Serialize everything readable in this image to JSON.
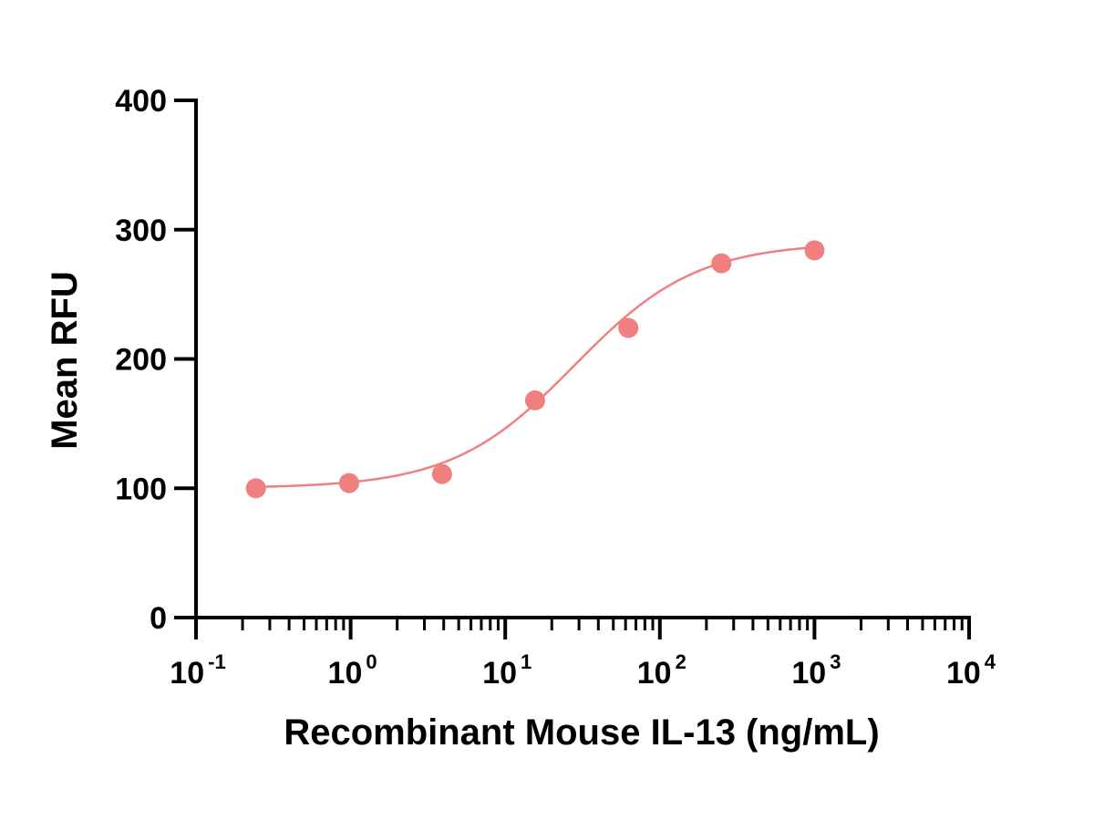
{
  "chart_data": {
    "type": "scatter",
    "title": "",
    "xlabel": "Recombinant Mouse IL-13 (ng/mL)",
    "ylabel": "Mean RFU",
    "x_scale": "log10",
    "xlim": [
      0.1,
      10000
    ],
    "ylim": [
      0,
      400
    ],
    "x_tick_labels": [
      {
        "base": "10",
        "exp": "-1",
        "value": 0.1
      },
      {
        "base": "10",
        "exp": "0",
        "value": 1
      },
      {
        "base": "10",
        "exp": "1",
        "value": 10
      },
      {
        "base": "10",
        "exp": "2",
        "value": 100
      },
      {
        "base": "10",
        "exp": "3",
        "value": 1000
      },
      {
        "base": "10",
        "exp": "4",
        "value": 10000
      }
    ],
    "y_ticks": [
      0,
      100,
      200,
      300,
      400
    ],
    "y_tick_labels": [
      "0",
      "100",
      "200",
      "300",
      "400"
    ],
    "grid": false,
    "legend": "none",
    "series": [
      {
        "color": "#f08080",
        "points": [
          {
            "x": 0.244,
            "y": 100
          },
          {
            "x": 0.977,
            "y": 104
          },
          {
            "x": 3.9,
            "y": 111
          },
          {
            "x": 15.6,
            "y": 168
          },
          {
            "x": 62.5,
            "y": 224
          },
          {
            "x": 250,
            "y": 274
          },
          {
            "x": 1000,
            "y": 284
          }
        ],
        "fit": {
          "model": "4PL",
          "bottom": 100,
          "top": 290,
          "ec50": 28,
          "hill": 1.1
        }
      }
    ]
  }
}
